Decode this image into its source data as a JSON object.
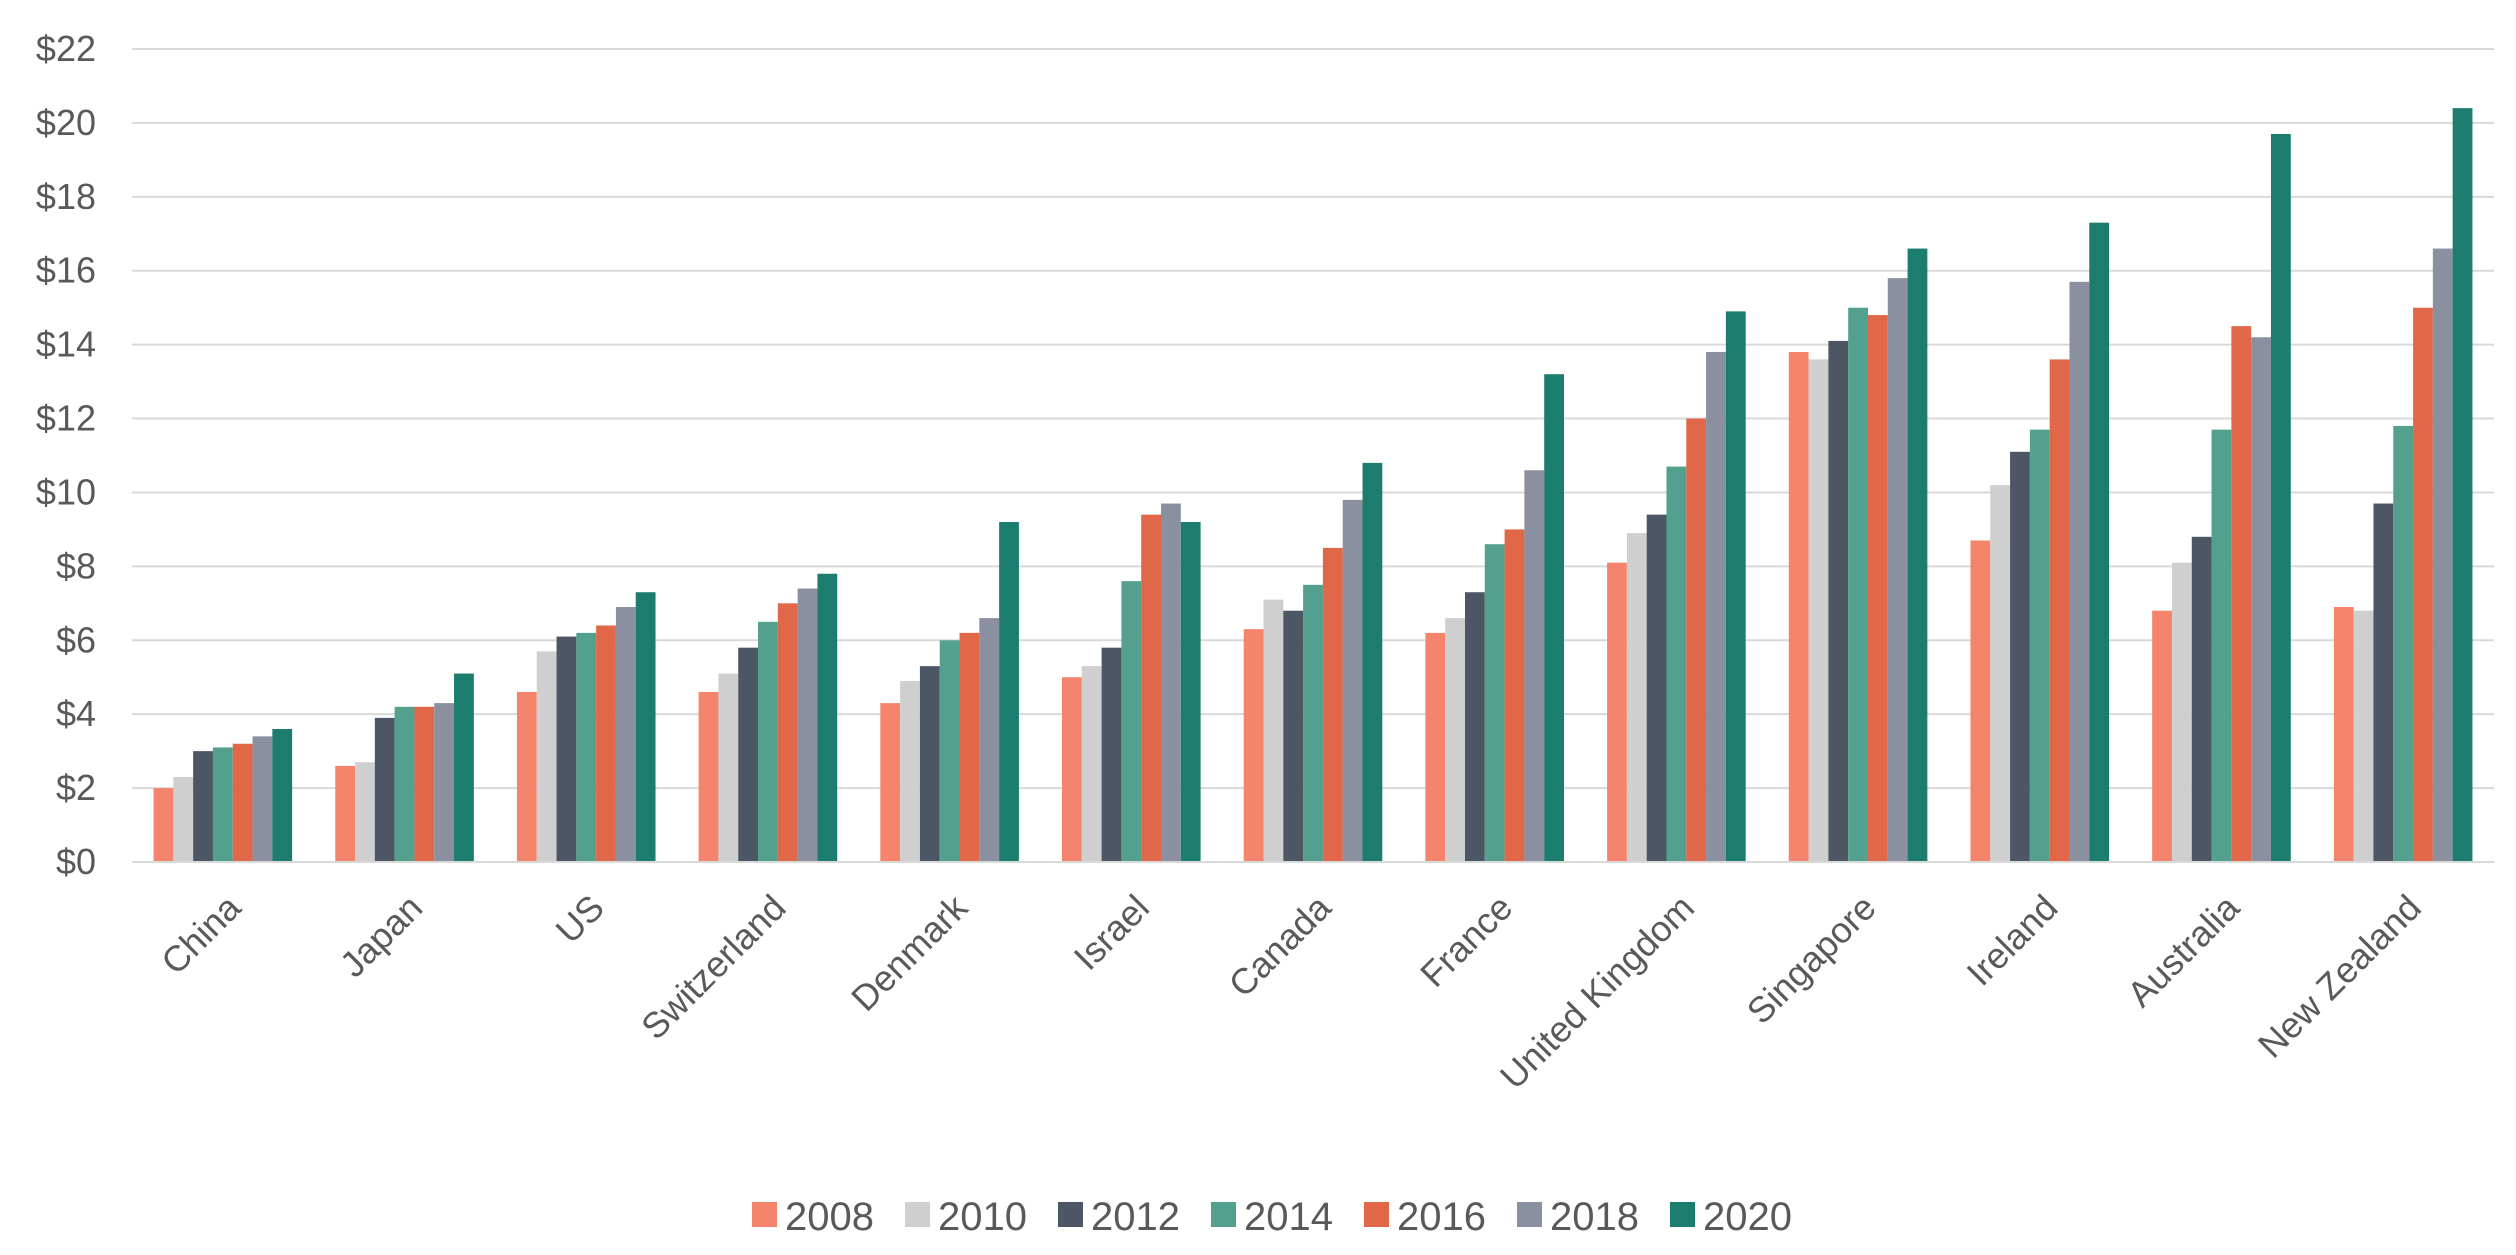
{
  "chart_data": {
    "type": "bar",
    "title": "",
    "xlabel": "",
    "ylabel": "",
    "ylim": [
      0,
      22
    ],
    "y_ticks": [
      "$0",
      "$2",
      "$4",
      "$6",
      "$8",
      "$10",
      "$12",
      "$14",
      "$16",
      "$18",
      "$20",
      "$22"
    ],
    "y_tick_values": [
      0,
      2,
      4,
      6,
      8,
      10,
      12,
      14,
      16,
      18,
      20,
      22
    ],
    "grid": true,
    "legend_position": "bottom",
    "categories": [
      "China",
      "Japan",
      "US",
      "Switzerland",
      "Denmark",
      "Israel",
      "Canada",
      "France",
      "United Kingdom",
      "Singapore",
      "Ireland",
      "Australia",
      "New Zealand"
    ],
    "series": [
      {
        "name": "2008",
        "color": "#f4846b",
        "values": [
          2.0,
          2.6,
          4.6,
          4.6,
          4.3,
          5.0,
          6.3,
          6.2,
          8.1,
          13.8,
          8.7,
          6.8,
          6.9
        ]
      },
      {
        "name": "2010",
        "color": "#d0cfcf",
        "values": [
          2.3,
          2.7,
          5.7,
          5.1,
          4.9,
          5.3,
          7.1,
          6.6,
          8.9,
          13.6,
          10.2,
          8.1,
          6.8
        ]
      },
      {
        "name": "2012",
        "color": "#4d5665",
        "values": [
          3.0,
          3.9,
          6.1,
          5.8,
          5.3,
          5.8,
          6.8,
          7.3,
          9.4,
          14.1,
          11.1,
          8.8,
          9.7
        ]
      },
      {
        "name": "2014",
        "color": "#53a08f",
        "values": [
          3.1,
          4.2,
          6.2,
          6.5,
          6.0,
          7.6,
          7.5,
          8.6,
          10.7,
          15.0,
          11.7,
          11.7,
          11.8
        ]
      },
      {
        "name": "2016",
        "color": "#e06747",
        "values": [
          3.2,
          4.2,
          6.4,
          7.0,
          6.2,
          9.4,
          8.5,
          9.0,
          12.0,
          14.8,
          13.6,
          14.5,
          15.0
        ]
      },
      {
        "name": "2018",
        "color": "#8b90a0",
        "values": [
          3.4,
          4.3,
          6.9,
          7.4,
          6.6,
          9.7,
          9.8,
          10.6,
          13.8,
          15.8,
          15.7,
          14.2,
          16.6
        ]
      },
      {
        "name": "2020",
        "color": "#1c7d6e",
        "values": [
          3.6,
          5.1,
          7.3,
          7.8,
          9.2,
          9.2,
          10.8,
          13.2,
          14.9,
          16.6,
          17.3,
          19.7,
          20.4
        ]
      }
    ]
  }
}
